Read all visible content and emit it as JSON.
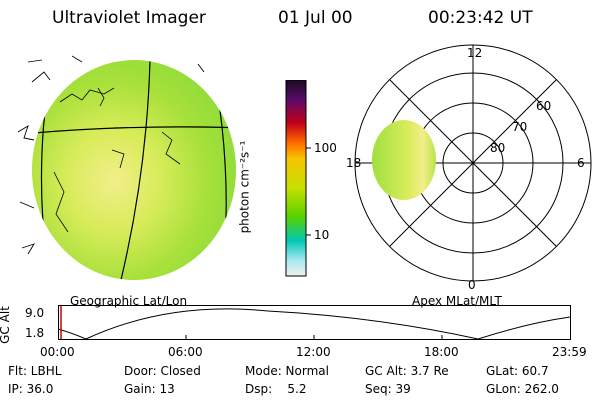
{
  "header": {
    "instrument": "Ultraviolet Imager",
    "date": "01 Jul 00",
    "time": "00:23:42 UT"
  },
  "panels": {
    "left_caption": "Geographic Lat/Lon",
    "right_caption": "Apex MLat/MLT"
  },
  "colorbar": {
    "label": "photon cm⁻²s⁻¹",
    "ticks": [
      "100",
      "10"
    ],
    "scale": "log",
    "colors": [
      "#1a0a1e",
      "#5a0a6a",
      "#c0001a",
      "#ff6a00",
      "#f6c400",
      "#c8e000",
      "#55d200",
      "#00c8b4",
      "#a8e8f0",
      "#f0f0f0"
    ]
  },
  "polar": {
    "mlt_labels": [
      "12",
      "18",
      "6",
      "0"
    ],
    "lat_labels": [
      "60",
      "70",
      "80"
    ]
  },
  "altitude_plot": {
    "ylabel": "GC Alt",
    "yticks": [
      "9.0",
      "1.8"
    ],
    "xticks": [
      "00:00",
      "06:00",
      "12:00",
      "18:00",
      "23:59"
    ]
  },
  "info": {
    "row1": {
      "flt": "Flt: LBHL",
      "door": "Door: Closed",
      "mode": "Mode: Normal",
      "gc_alt": "GC Alt: 3.7 Re",
      "glat": "GLat: 60.7"
    },
    "row2": {
      "ip": "IP: 36.0",
      "gain": "Gain: 13",
      "dsp": "Dsp:    5.2",
      "seq": "Seq: 39",
      "glon": "GLon: 262.0"
    }
  }
}
